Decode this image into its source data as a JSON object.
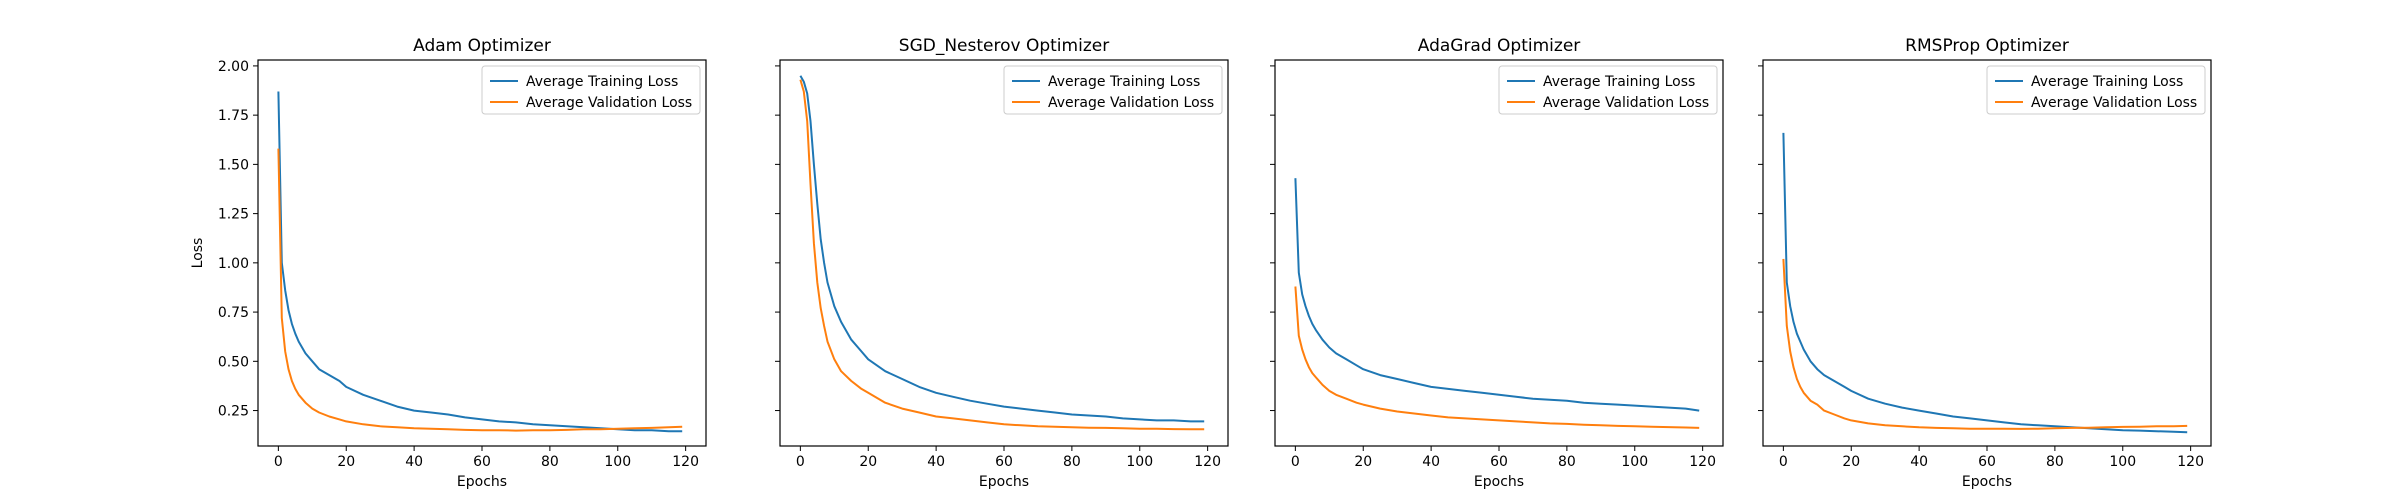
{
  "chart_data": [
    {
      "type": "line",
      "title": "Adam Optimizer",
      "xlabel": "Epochs",
      "ylabel": "Loss",
      "xlim": [
        -6,
        126
      ],
      "ylim": [
        0.07,
        2.03
      ],
      "xticks": [
        0,
        20,
        40,
        60,
        80,
        100,
        120
      ],
      "yticks": [
        0.25,
        0.5,
        0.75,
        1.0,
        1.25,
        1.5,
        1.75,
        2.0
      ],
      "ytick_labels": [
        "0.25",
        "0.50",
        "0.75",
        "1.00",
        "1.25",
        "1.50",
        "1.75",
        "2.00"
      ],
      "legend": "top-right",
      "series": [
        {
          "name": "Average Training Loss",
          "color": "#1f77b4",
          "x": [
            0,
            1,
            2,
            3,
            4,
            5,
            6,
            8,
            10,
            12,
            15,
            18,
            20,
            25,
            30,
            35,
            40,
            45,
            50,
            55,
            60,
            65,
            70,
            75,
            80,
            85,
            90,
            95,
            100,
            105,
            110,
            115,
            119
          ],
          "y": [
            1.87,
            1.0,
            0.86,
            0.76,
            0.69,
            0.64,
            0.6,
            0.54,
            0.5,
            0.46,
            0.43,
            0.4,
            0.37,
            0.33,
            0.3,
            0.27,
            0.25,
            0.24,
            0.23,
            0.215,
            0.205,
            0.195,
            0.19,
            0.18,
            0.175,
            0.17,
            0.165,
            0.16,
            0.155,
            0.15,
            0.15,
            0.145,
            0.145
          ]
        },
        {
          "name": "Average Validation Loss",
          "color": "#ff7f0e",
          "x": [
            0,
            1,
            2,
            3,
            4,
            5,
            6,
            8,
            10,
            12,
            15,
            18,
            20,
            25,
            30,
            35,
            40,
            45,
            50,
            55,
            60,
            65,
            70,
            75,
            80,
            85,
            90,
            95,
            100,
            105,
            110,
            115,
            119
          ],
          "y": [
            1.58,
            0.72,
            0.55,
            0.46,
            0.4,
            0.36,
            0.33,
            0.29,
            0.26,
            0.24,
            0.22,
            0.205,
            0.195,
            0.18,
            0.17,
            0.165,
            0.16,
            0.158,
            0.155,
            0.152,
            0.15,
            0.15,
            0.148,
            0.15,
            0.15,
            0.152,
            0.155,
            0.155,
            0.158,
            0.16,
            0.162,
            0.165,
            0.168
          ]
        }
      ]
    },
    {
      "type": "line",
      "title": "SGD_Nesterov Optimizer",
      "xlabel": "Epochs",
      "ylabel": "",
      "xlim": [
        -6,
        126
      ],
      "ylim": [
        0.07,
        2.03
      ],
      "xticks": [
        0,
        20,
        40,
        60,
        80,
        100,
        120
      ],
      "yticks": [
        0.25,
        0.5,
        0.75,
        1.0,
        1.25,
        1.5,
        1.75,
        2.0
      ],
      "ytick_labels": [],
      "legend": "top-right",
      "series": [
        {
          "name": "Average Training Loss",
          "color": "#1f77b4",
          "x": [
            0,
            1,
            2,
            3,
            4,
            5,
            6,
            7,
            8,
            10,
            12,
            15,
            18,
            20,
            25,
            30,
            35,
            40,
            45,
            50,
            55,
            60,
            65,
            70,
            75,
            80,
            85,
            90,
            95,
            100,
            105,
            110,
            115,
            119
          ],
          "y": [
            1.95,
            1.92,
            1.86,
            1.72,
            1.5,
            1.3,
            1.12,
            1.0,
            0.9,
            0.78,
            0.7,
            0.61,
            0.55,
            0.51,
            0.45,
            0.41,
            0.37,
            0.34,
            0.32,
            0.3,
            0.285,
            0.27,
            0.26,
            0.25,
            0.24,
            0.23,
            0.225,
            0.22,
            0.21,
            0.205,
            0.2,
            0.2,
            0.195,
            0.195
          ]
        },
        {
          "name": "Average Validation Loss",
          "color": "#ff7f0e",
          "x": [
            0,
            1,
            2,
            3,
            4,
            5,
            6,
            7,
            8,
            10,
            12,
            15,
            18,
            20,
            25,
            30,
            35,
            40,
            45,
            50,
            55,
            60,
            65,
            70,
            75,
            80,
            85,
            90,
            95,
            100,
            105,
            110,
            115,
            119
          ],
          "y": [
            1.93,
            1.87,
            1.72,
            1.4,
            1.1,
            0.9,
            0.77,
            0.68,
            0.6,
            0.51,
            0.45,
            0.4,
            0.36,
            0.34,
            0.29,
            0.26,
            0.24,
            0.22,
            0.21,
            0.2,
            0.19,
            0.18,
            0.175,
            0.17,
            0.168,
            0.165,
            0.163,
            0.162,
            0.16,
            0.158,
            0.158,
            0.156,
            0.155,
            0.155
          ]
        }
      ]
    },
    {
      "type": "line",
      "title": "AdaGrad Optimizer",
      "xlabel": "Epochs",
      "ylabel": "",
      "xlim": [
        -6,
        126
      ],
      "ylim": [
        0.07,
        2.03
      ],
      "xticks": [
        0,
        20,
        40,
        60,
        80,
        100,
        120
      ],
      "yticks": [
        0.25,
        0.5,
        0.75,
        1.0,
        1.25,
        1.5,
        1.75,
        2.0
      ],
      "ytick_labels": [],
      "legend": "top-right",
      "series": [
        {
          "name": "Average Training Loss",
          "color": "#1f77b4",
          "x": [
            0,
            1,
            2,
            3,
            4,
            5,
            6,
            8,
            10,
            12,
            15,
            18,
            20,
            25,
            30,
            35,
            40,
            45,
            50,
            55,
            60,
            65,
            70,
            75,
            80,
            85,
            90,
            95,
            100,
            105,
            110,
            115,
            119
          ],
          "y": [
            1.43,
            0.95,
            0.84,
            0.78,
            0.73,
            0.69,
            0.66,
            0.61,
            0.57,
            0.54,
            0.51,
            0.48,
            0.46,
            0.43,
            0.41,
            0.39,
            0.37,
            0.36,
            0.35,
            0.34,
            0.33,
            0.32,
            0.31,
            0.305,
            0.3,
            0.29,
            0.285,
            0.28,
            0.275,
            0.27,
            0.265,
            0.26,
            0.25
          ]
        },
        {
          "name": "Average Validation Loss",
          "color": "#ff7f0e",
          "x": [
            0,
            1,
            2,
            3,
            4,
            5,
            6,
            8,
            10,
            12,
            15,
            18,
            20,
            25,
            30,
            35,
            40,
            45,
            50,
            55,
            60,
            65,
            70,
            75,
            80,
            85,
            90,
            95,
            100,
            105,
            110,
            115,
            119
          ],
          "y": [
            0.88,
            0.63,
            0.56,
            0.51,
            0.47,
            0.44,
            0.42,
            0.38,
            0.35,
            0.33,
            0.31,
            0.29,
            0.28,
            0.26,
            0.245,
            0.235,
            0.225,
            0.215,
            0.21,
            0.205,
            0.2,
            0.195,
            0.19,
            0.185,
            0.182,
            0.178,
            0.175,
            0.172,
            0.17,
            0.168,
            0.166,
            0.164,
            0.162
          ]
        }
      ]
    },
    {
      "type": "line",
      "title": "RMSProp Optimizer",
      "xlabel": "Epochs",
      "ylabel": "",
      "xlim": [
        -6,
        126
      ],
      "ylim": [
        0.07,
        2.03
      ],
      "xticks": [
        0,
        20,
        40,
        60,
        80,
        100,
        120
      ],
      "yticks": [
        0.25,
        0.5,
        0.75,
        1.0,
        1.25,
        1.5,
        1.75,
        2.0
      ],
      "ytick_labels": [],
      "legend": "top-right",
      "series": [
        {
          "name": "Average Training Loss",
          "color": "#1f77b4",
          "x": [
            0,
            1,
            2,
            3,
            4,
            5,
            6,
            8,
            10,
            12,
            15,
            18,
            20,
            25,
            30,
            35,
            40,
            45,
            50,
            55,
            60,
            65,
            70,
            75,
            80,
            85,
            90,
            95,
            100,
            105,
            110,
            115,
            119
          ],
          "y": [
            1.66,
            0.9,
            0.78,
            0.7,
            0.64,
            0.6,
            0.56,
            0.5,
            0.46,
            0.43,
            0.4,
            0.37,
            0.35,
            0.31,
            0.285,
            0.265,
            0.25,
            0.235,
            0.22,
            0.21,
            0.2,
            0.19,
            0.18,
            0.175,
            0.17,
            0.165,
            0.16,
            0.155,
            0.15,
            0.148,
            0.145,
            0.142,
            0.14
          ]
        },
        {
          "name": "Average Validation Loss",
          "color": "#ff7f0e",
          "x": [
            0,
            1,
            2,
            3,
            4,
            5,
            6,
            8,
            10,
            12,
            15,
            18,
            20,
            25,
            30,
            35,
            40,
            45,
            50,
            55,
            60,
            65,
            70,
            75,
            80,
            85,
            90,
            95,
            100,
            105,
            110,
            115,
            119
          ],
          "y": [
            1.02,
            0.68,
            0.55,
            0.47,
            0.41,
            0.37,
            0.34,
            0.3,
            0.28,
            0.25,
            0.23,
            0.21,
            0.2,
            0.185,
            0.175,
            0.17,
            0.165,
            0.162,
            0.16,
            0.158,
            0.158,
            0.158,
            0.157,
            0.158,
            0.16,
            0.162,
            0.163,
            0.165,
            0.167,
            0.168,
            0.17,
            0.17,
            0.172
          ]
        }
      ]
    }
  ]
}
